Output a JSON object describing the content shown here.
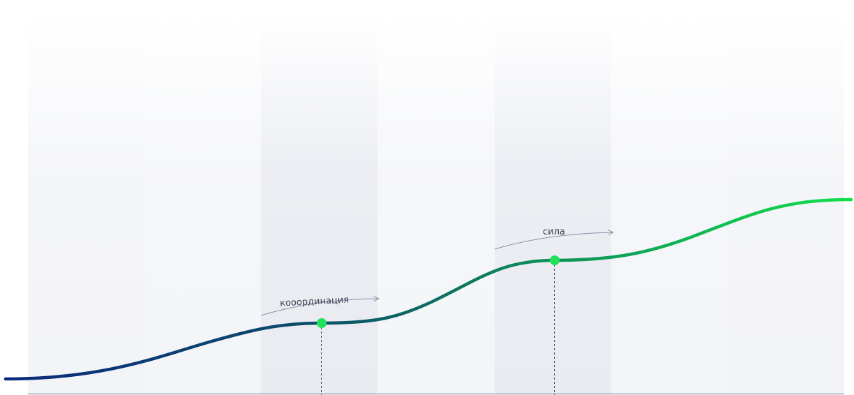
{
  "annotations": [
    {
      "label": "кооординация"
    },
    {
      "label": "сила"
    }
  ],
  "colors": {
    "curve_start": "#0a2a7e",
    "curve_end": "#12e04c",
    "marker": "#22e05a",
    "band_light": "#f4f5f8",
    "band_dark": "#ebedf2",
    "baseline": "#8f93a3",
    "annotation_line": "#8a8fa8",
    "dash_line": "#2a2f5e"
  }
}
